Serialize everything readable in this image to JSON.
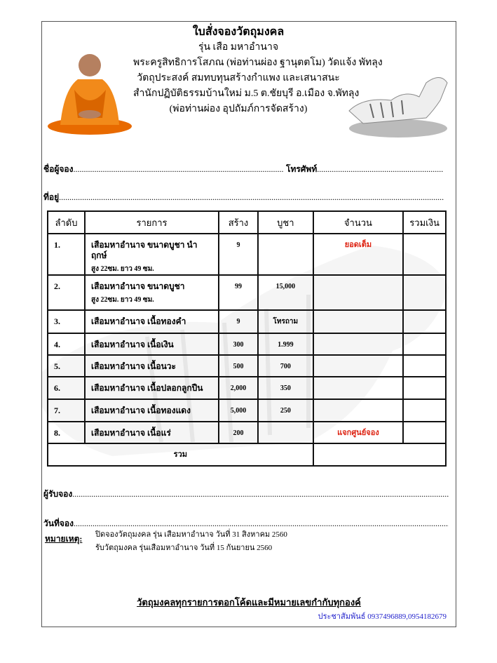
{
  "header": {
    "title": "ใบสั่งจองวัตถุมงคล",
    "lines": [
      "รุ่น เสือ มหาอำนาจ",
      "พระครูสิทธิการโสภณ (พ่อท่านผ่อง ฐานุตตโม) วัดแจ้ง พัทลุง",
      "วัตถุประสงค์ สมทบทุนสร้างกำแพง และเสนาสนะ",
      "สำนักปฏิบัติธรรมบ้านใหม่ ม.5 ต.ชัยบุรี อ.เมือง จ.พัทลุง",
      "(พ่อท่านผ่อง อุปถัมภ์การจัดสร้าง)"
    ]
  },
  "form": {
    "name_label": "ชื่อผู้จอง",
    "phone_label": "โทรศัพท์",
    "address_label": "ที่อยู่"
  },
  "table": {
    "headers": [
      "ลำดับ",
      "รายการ",
      "สร้าง",
      "บูชา",
      "จำนวน",
      "รวมเงิน"
    ],
    "rows": [
      {
        "no": "1.",
        "item": "เสือมหาอำนาจ ขนาดบูชา นำฤกษ์",
        "item2": "สูง 22ซม. ยาว 49 ซม.",
        "made": "9",
        "price": "",
        "qty": "ยอดเต็ม",
        "total": ""
      },
      {
        "no": "2.",
        "item": "เสือมหาอำนาจ ขนาดบูชา",
        "item2": "สูง 22ซม. ยาว 49 ซม.",
        "made": "99",
        "price": "15,000",
        "qty": "",
        "total": ""
      },
      {
        "no": "3.",
        "item": "เสือมหาอำนาจ เนื้อทองคำ",
        "item2": "",
        "made": "9",
        "price": "โทรถาม",
        "qty": "",
        "total": ""
      },
      {
        "no": "4.",
        "item": "เสือมหาอำนาจ เนื้อเงิน",
        "item2": "",
        "made": "300",
        "price": "1.999",
        "qty": "",
        "total": ""
      },
      {
        "no": "5.",
        "item": "เสือมหาอำนาจ เนื้อนวะ",
        "item2": "",
        "made": "500",
        "price": "700",
        "qty": "",
        "total": ""
      },
      {
        "no": "6.",
        "item": "เสือมหาอำนาจ เนื้อปลอกลูกปืน",
        "item2": "",
        "made": "2,000",
        "price": "350",
        "qty": "",
        "total": ""
      },
      {
        "no": "7.",
        "item": "เสือมหาอำนาจ เนื้อทองแดง",
        "item2": "",
        "made": "5,000",
        "price": "250",
        "qty": "",
        "total": ""
      },
      {
        "no": "8.",
        "item": "เสือมหาอำนาจ เนื้อแร่",
        "item2": "",
        "made": "200",
        "price": "",
        "qty": "แจกศูนย์จอง",
        "total": ""
      }
    ],
    "sum_label": "รวม"
  },
  "footer": {
    "receiver_label": "ผู้รับจอง",
    "date_label": "วันที่จอง",
    "note_label": "หมายเหตุ:",
    "notes": [
      "ปิดจองวัตถุมงคล รุ่น เสือมหาอำนาจ วันที่ 31 สิงหาคม 2560",
      "รับวัตถุมงคล รุ่นเสือมหาอำนาจ วันที่ 15 กันยายน 2560"
    ],
    "stamp_note": "วัตถุมงคลทุกรายการตอกโค้ดและมีหมายเลขกำกับทุกองค์",
    "contact": "ประชาสัมพันธ์ 0937496889,0954182679"
  },
  "colors": {
    "highlight": "#dd2211",
    "contact": "#2222cc",
    "robe": "#f07a10"
  }
}
